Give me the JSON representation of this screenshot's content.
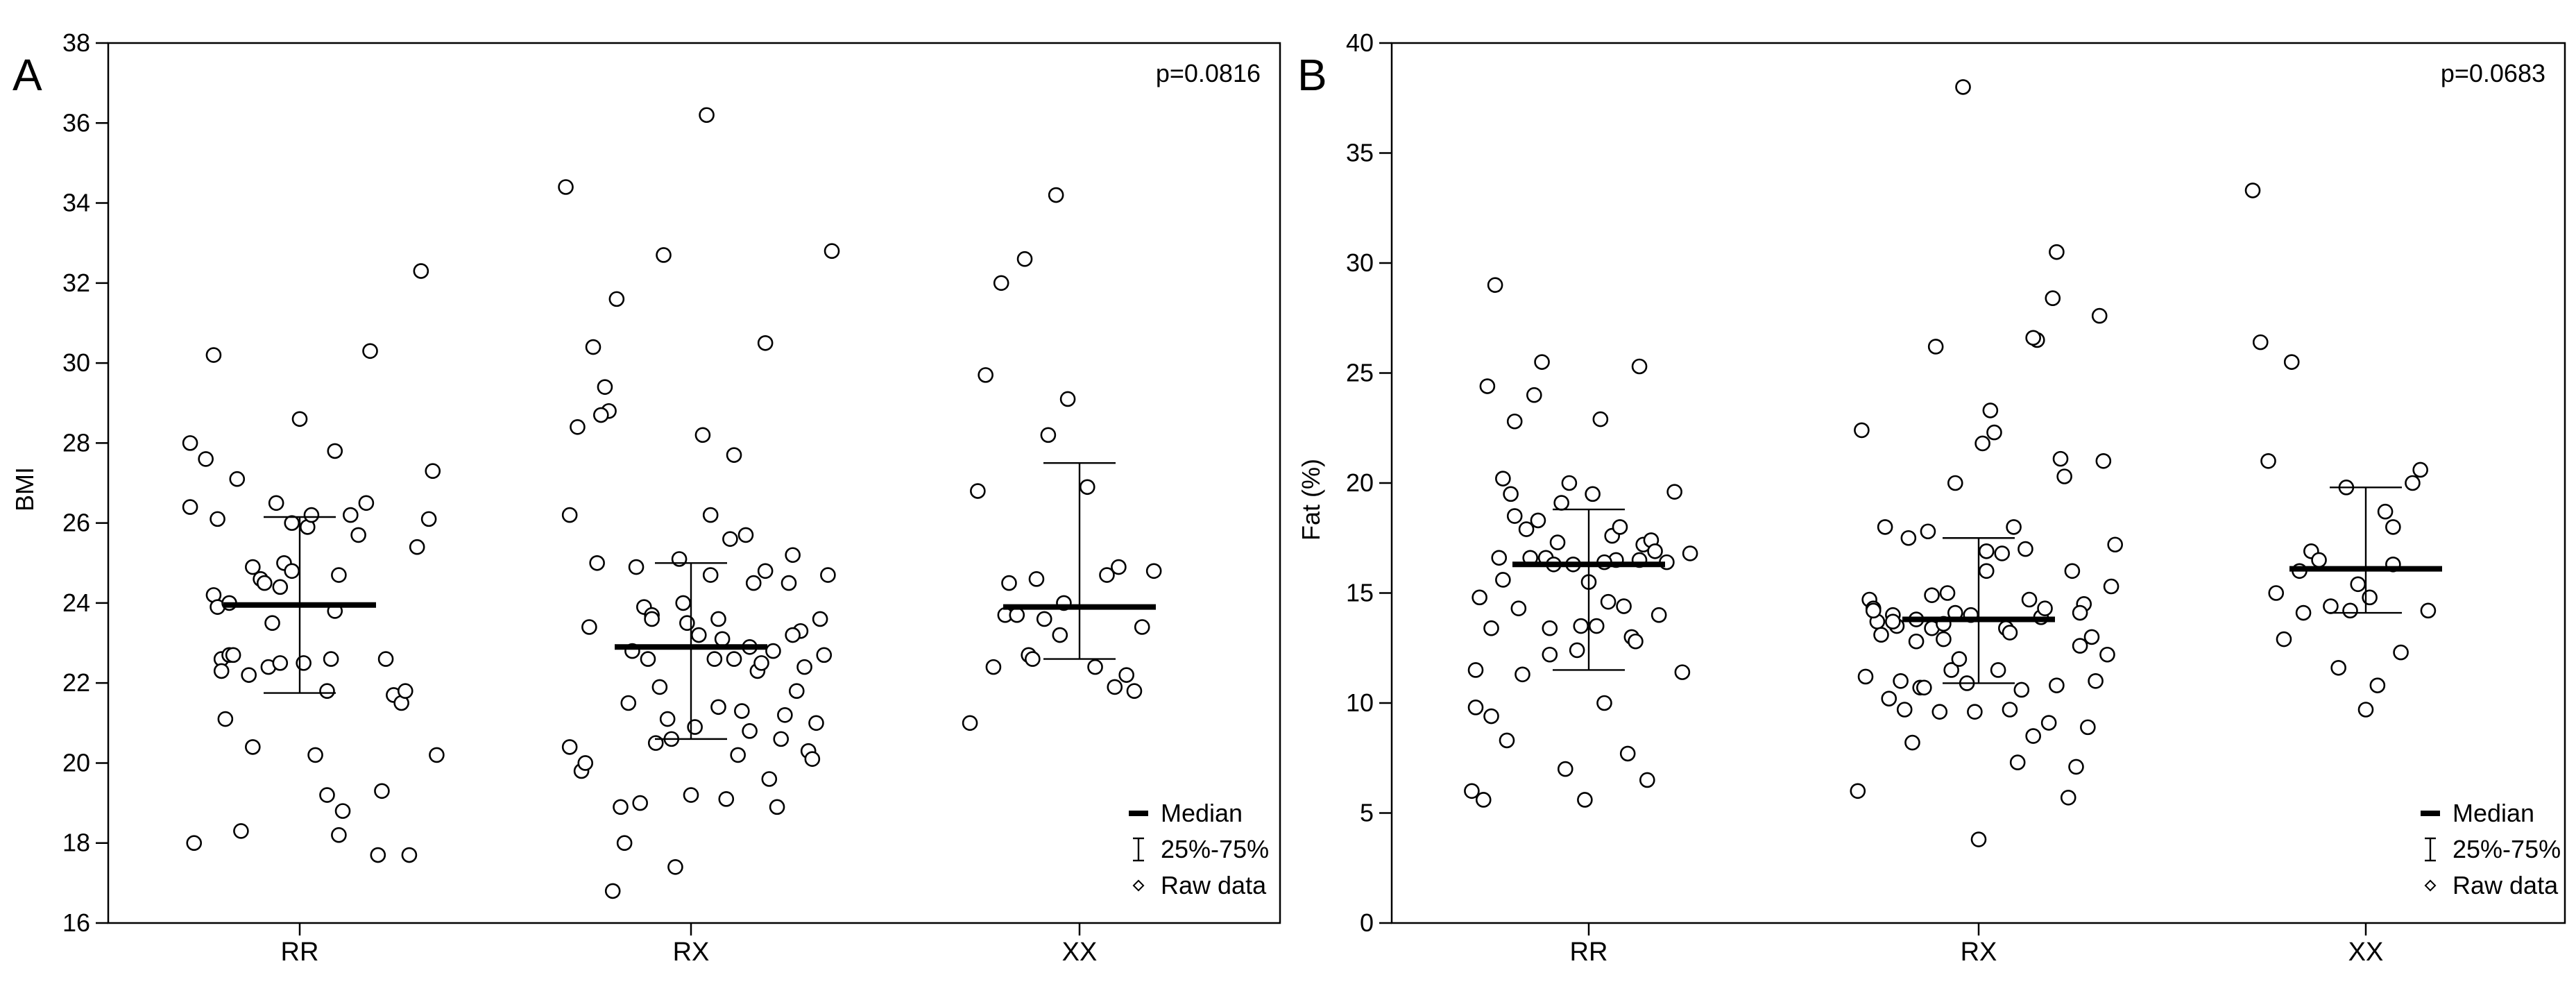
{
  "chart_data": [
    {
      "type": "scatter",
      "panel_label": "A",
      "title": "",
      "xlabel": "",
      "ylabel": "BMI",
      "categories": [
        "RR",
        "RX",
        "XX"
      ],
      "ylim": [
        16,
        38
      ],
      "yticks": [
        16,
        18,
        20,
        22,
        24,
        26,
        28,
        30,
        32,
        34,
        36,
        38
      ],
      "annotation": "p=0.0816",
      "legend": {
        "placement": "bottom-right",
        "entries": [
          "Median",
          "25%-75%",
          "Raw data"
        ]
      },
      "summary": [
        {
          "category": "RR",
          "median": 23.95,
          "q1": 21.75,
          "q3": 26.15
        },
        {
          "category": "RX",
          "median": 22.9,
          "q1": 20.6,
          "q3": 25.0
        },
        {
          "category": "XX",
          "median": 23.9,
          "q1": 22.6,
          "q3": 27.5
        }
      ],
      "points": [
        {
          "category": "RR",
          "jitter": [
            -0.28,
            -0.28,
            -0.27,
            -0.24,
            -0.22,
            -0.22,
            -0.21,
            -0.21,
            -0.2,
            -0.2,
            -0.19,
            -0.18,
            -0.18,
            -0.17,
            -0.16,
            -0.15,
            -0.13,
            -0.12,
            -0.12,
            -0.1,
            -0.09,
            -0.08,
            -0.07,
            -0.06,
            -0.05,
            -0.05,
            -0.04,
            -0.02,
            -0.02,
            0.0,
            0.01,
            0.02,
            0.03,
            0.04,
            0.07,
            0.07,
            0.08,
            0.09,
            0.09,
            0.1,
            0.1,
            0.11,
            0.13,
            0.15,
            0.17,
            0.18,
            0.21,
            0.22,
            0.24,
            0.26,
            0.27,
            0.28,
            0.3,
            0.31,
            0.33,
            0.34,
            0.35,
            0.2
          ],
          "values": [
            28.0,
            26.4,
            18.0,
            27.6,
            24.2,
            30.2,
            26.1,
            23.9,
            22.6,
            22.3,
            21.1,
            24.0,
            22.7,
            22.7,
            27.1,
            18.3,
            22.2,
            24.9,
            20.4,
            24.6,
            24.5,
            22.4,
            23.5,
            26.5,
            24.4,
            22.5,
            25.0,
            26.0,
            24.8,
            28.6,
            22.5,
            25.9,
            26.2,
            20.2,
            19.2,
            21.8,
            22.6,
            23.8,
            27.8,
            18.2,
            24.7,
            18.8,
            26.2,
            25.7,
            26.5,
            30.3,
            19.3,
            22.6,
            21.7,
            21.5,
            21.8,
            17.7,
            25.4,
            32.3,
            26.1,
            27.3,
            20.2,
            17.7
          ]
        },
        {
          "category": "RX",
          "jitter": [
            -0.32,
            -0.31,
            -0.31,
            -0.29,
            -0.28,
            -0.27,
            -0.26,
            -0.25,
            -0.24,
            -0.22,
            -0.21,
            -0.2,
            -0.19,
            -0.17,
            -0.16,
            -0.15,
            -0.14,
            -0.13,
            -0.12,
            -0.11,
            -0.1,
            -0.1,
            -0.08,
            -0.07,
            -0.06,
            -0.05,
            -0.04,
            -0.03,
            -0.02,
            -0.01,
            0.0,
            0.01,
            0.02,
            0.03,
            0.04,
            0.05,
            0.06,
            0.07,
            0.08,
            0.09,
            0.1,
            0.11,
            0.12,
            0.13,
            0.14,
            0.15,
            0.16,
            0.17,
            0.18,
            0.19,
            0.2,
            0.21,
            0.22,
            0.23,
            0.24,
            0.25,
            0.26,
            0.27,
            0.28,
            0.29,
            0.3,
            0.31,
            0.32,
            0.33,
            0.34,
            0.35,
            0.36,
            -0.18,
            -0.09,
            0.15,
            0.05,
            -0.23,
            0.26,
            0.11,
            0.19,
            0.07
          ],
          "values": [
            34.4,
            20.4,
            26.2,
            28.4,
            19.8,
            20.0,
            23.4,
            30.4,
            25.0,
            29.4,
            28.8,
            16.8,
            31.6,
            18.0,
            21.5,
            22.8,
            24.9,
            19.0,
            23.9,
            22.6,
            23.7,
            23.6,
            21.9,
            32.7,
            21.1,
            20.6,
            17.4,
            25.1,
            24.0,
            23.5,
            19.2,
            20.9,
            23.2,
            28.2,
            36.2,
            24.7,
            22.6,
            21.4,
            23.1,
            19.1,
            25.6,
            27.7,
            20.2,
            21.3,
            25.7,
            22.9,
            24.5,
            22.3,
            22.5,
            30.5,
            19.6,
            22.8,
            18.9,
            20.6,
            21.2,
            24.5,
            25.2,
            21.8,
            23.3,
            22.4,
            20.3,
            20.1,
            21.0,
            23.6,
            22.7,
            24.7,
            32.8,
            18.9,
            20.5,
            20.8,
            26.2,
            28.7,
            23.2,
            22.6,
            24.8,
            23.6
          ]
        },
        {
          "category": "XX",
          "jitter": [
            -0.28,
            -0.26,
            -0.24,
            -0.22,
            -0.2,
            -0.19,
            -0.18,
            -0.16,
            -0.14,
            -0.13,
            -0.12,
            -0.11,
            -0.09,
            -0.08,
            -0.06,
            -0.05,
            -0.04,
            -0.03,
            0.02,
            0.04,
            0.07,
            0.09,
            0.1,
            0.12,
            0.14,
            0.16,
            0.19
          ],
          "values": [
            21.0,
            26.8,
            29.7,
            22.4,
            32.0,
            23.7,
            24.5,
            23.7,
            32.6,
            22.7,
            22.6,
            24.6,
            23.6,
            28.2,
            34.2,
            23.2,
            24.0,
            29.1,
            26.9,
            22.4,
            24.7,
            21.9,
            24.9,
            22.2,
            21.8,
            23.4,
            24.8
          ]
        }
      ]
    },
    {
      "type": "scatter",
      "panel_label": "B",
      "title": "",
      "xlabel": "",
      "ylabel": "Fat (%)",
      "categories": [
        "RR",
        "RX",
        "XX"
      ],
      "ylim": [
        0,
        40
      ],
      "yticks": [
        0,
        5,
        10,
        15,
        20,
        25,
        30,
        35,
        40
      ],
      "annotation": "p=0.0683",
      "legend": {
        "placement": "bottom-right",
        "entries": [
          "Median",
          "25%-75%",
          "Raw data"
        ]
      },
      "summary": [
        {
          "category": "RR",
          "median": 16.3,
          "q1": 11.5,
          "q3": 18.8
        },
        {
          "category": "RX",
          "median": 13.8,
          "q1": 10.9,
          "q3": 17.5
        },
        {
          "category": "XX",
          "median": 16.1,
          "q1": 14.1,
          "q3": 19.8
        }
      ],
      "points": [
        {
          "category": "RR",
          "jitter": [
            -0.3,
            -0.29,
            -0.29,
            -0.28,
            -0.27,
            -0.26,
            -0.25,
            -0.25,
            -0.24,
            -0.23,
            -0.22,
            -0.21,
            -0.2,
            -0.19,
            -0.18,
            -0.17,
            -0.16,
            -0.15,
            -0.14,
            -0.13,
            -0.12,
            -0.11,
            -0.1,
            -0.09,
            -0.08,
            -0.07,
            -0.06,
            -0.05,
            -0.04,
            -0.03,
            -0.02,
            -0.01,
            0.0,
            0.01,
            0.02,
            0.03,
            0.04,
            0.05,
            0.06,
            0.07,
            0.08,
            0.09,
            0.1,
            0.11,
            0.12,
            0.13,
            0.14,
            0.15,
            0.16,
            0.17,
            0.18,
            0.2,
            0.22,
            0.24,
            0.26,
            -0.19,
            -0.1,
            0.04,
            0.13,
            -0.22
          ],
          "values": [
            6.0,
            9.8,
            11.5,
            14.8,
            5.6,
            24.4,
            9.4,
            13.4,
            29.0,
            16.6,
            20.2,
            8.3,
            19.5,
            22.8,
            14.3,
            11.3,
            17.9,
            16.6,
            24.0,
            18.3,
            25.5,
            16.6,
            13.4,
            16.3,
            17.3,
            19.1,
            7.0,
            20.0,
            16.3,
            12.4,
            13.5,
            5.6,
            15.5,
            19.5,
            13.5,
            22.9,
            10.0,
            14.6,
            17.6,
            16.5,
            18.0,
            14.4,
            7.7,
            13.0,
            12.8,
            25.3,
            17.2,
            6.5,
            17.4,
            16.9,
            14.0,
            16.4,
            19.6,
            11.4,
            16.8,
            18.5,
            12.2,
            16.4,
            16.5,
            15.6
          ]
        },
        {
          "category": "RX",
          "jitter": [
            -0.31,
            -0.3,
            -0.29,
            -0.28,
            -0.27,
            -0.26,
            -0.25,
            -0.24,
            -0.23,
            -0.22,
            -0.21,
            -0.2,
            -0.19,
            -0.18,
            -0.17,
            -0.16,
            -0.15,
            -0.14,
            -0.13,
            -0.12,
            -0.11,
            -0.1,
            -0.09,
            -0.08,
            -0.07,
            -0.06,
            -0.05,
            -0.04,
            -0.03,
            -0.02,
            -0.01,
            0.0,
            0.01,
            0.02,
            0.03,
            0.04,
            0.05,
            0.06,
            0.07,
            0.08,
            0.09,
            0.1,
            0.11,
            0.12,
            0.13,
            0.14,
            0.15,
            0.16,
            0.17,
            0.18,
            0.19,
            0.2,
            0.21,
            0.22,
            0.23,
            0.24,
            0.25,
            0.26,
            0.27,
            0.28,
            0.29,
            0.3,
            0.31,
            0.32,
            0.33,
            0.34,
            0.35,
            -0.27,
            -0.22,
            -0.16,
            -0.12,
            -0.06,
            0.02,
            0.08,
            0.14,
            0.2,
            0.26,
            -0.09
          ],
          "values": [
            6.0,
            22.4,
            11.2,
            14.7,
            14.3,
            13.7,
            13.1,
            18.0,
            10.2,
            14.0,
            13.5,
            11.0,
            9.7,
            17.5,
            8.2,
            13.8,
            10.7,
            10.7,
            17.8,
            14.9,
            26.2,
            9.6,
            12.9,
            15.0,
            11.5,
            14.1,
            12.0,
            38.0,
            10.9,
            14.0,
            9.6,
            3.8,
            21.8,
            16.9,
            23.3,
            22.3,
            11.5,
            16.8,
            13.4,
            9.7,
            18.0,
            7.3,
            10.6,
            17.0,
            14.7,
            8.5,
            26.5,
            13.9,
            14.3,
            9.1,
            28.4,
            30.5,
            21.1,
            20.3,
            5.7,
            16.0,
            7.1,
            12.6,
            14.5,
            8.9,
            13.0,
            11.0,
            27.6,
            21.0,
            12.2,
            15.3,
            17.2,
            14.2,
            13.7,
            12.8,
            13.4,
            20.0,
            16.0,
            13.2,
            26.6,
            10.8,
            14.1,
            13.6
          ]
        },
        {
          "category": "XX",
          "jitter": [
            -0.29,
            -0.27,
            -0.25,
            -0.23,
            -0.21,
            -0.19,
            -0.17,
            -0.14,
            -0.12,
            -0.09,
            -0.07,
            -0.05,
            -0.02,
            0.0,
            0.01,
            0.03,
            0.05,
            0.07,
            0.09,
            0.12,
            0.14,
            0.16,
            -0.16,
            0.07,
            -0.04
          ],
          "values": [
            33.3,
            26.4,
            21.0,
            15.0,
            12.9,
            25.5,
            16.0,
            16.9,
            16.5,
            14.4,
            11.6,
            19.8,
            15.4,
            9.7,
            14.8,
            10.8,
            18.7,
            16.3,
            12.3,
            20.0,
            20.6,
            14.2,
            14.1,
            18.0,
            14.2
          ]
        }
      ]
    }
  ]
}
